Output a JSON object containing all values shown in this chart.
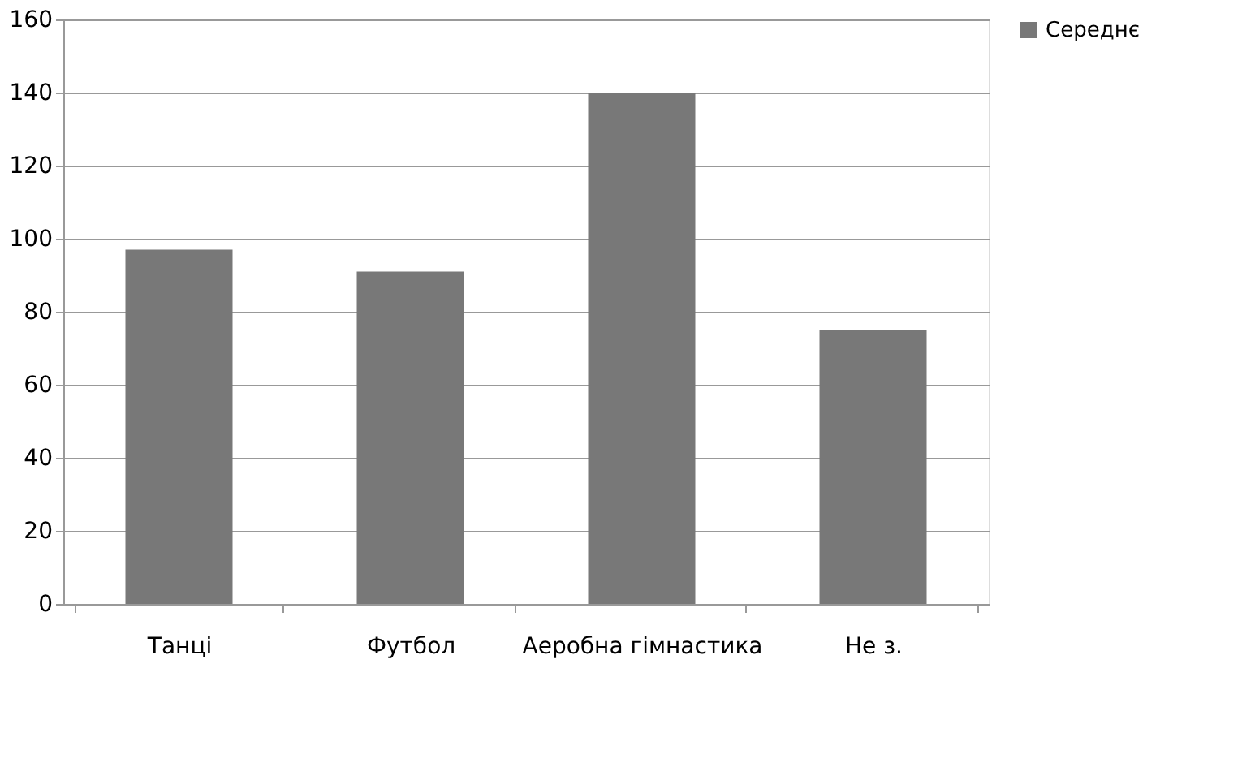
{
  "chart_data": {
    "type": "bar",
    "categories": [
      "Танці",
      "Футбол",
      "Аеробна гімнастика",
      "Не з."
    ],
    "series": [
      {
        "name": "Середнє",
        "color": "#787878",
        "values": [
          97,
          91,
          140,
          75
        ]
      }
    ],
    "ylim": [
      0,
      160
    ],
    "yticks": [
      0,
      20,
      40,
      60,
      80,
      100,
      120,
      140,
      160
    ],
    "grid": "y",
    "legend": "right"
  }
}
